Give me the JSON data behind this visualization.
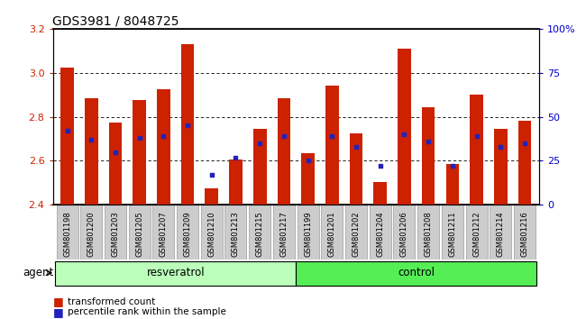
{
  "title": "GDS3981 / 8048725",
  "samples": [
    "GSM801198",
    "GSM801200",
    "GSM801203",
    "GSM801205",
    "GSM801207",
    "GSM801209",
    "GSM801210",
    "GSM801213",
    "GSM801215",
    "GSM801217",
    "GSM801199",
    "GSM801201",
    "GSM801202",
    "GSM801204",
    "GSM801206",
    "GSM801208",
    "GSM801211",
    "GSM801212",
    "GSM801214",
    "GSM801216"
  ],
  "transformed_count": [
    3.025,
    2.885,
    2.775,
    2.875,
    2.925,
    3.13,
    2.475,
    2.605,
    2.745,
    2.885,
    2.635,
    2.94,
    2.725,
    2.505,
    3.11,
    2.845,
    2.585,
    2.9,
    2.745,
    2.78
  ],
  "percentile_rank": [
    42,
    37,
    30,
    38,
    39,
    45,
    17,
    27,
    35,
    39,
    25,
    39,
    33,
    22,
    40,
    36,
    22,
    39,
    33,
    35
  ],
  "resveratrol_count": 10,
  "control_count": 10,
  "agent_label": "agent",
  "group1_label": "resveratrol",
  "group2_label": "control",
  "ylim": [
    2.4,
    3.2
  ],
  "yticks": [
    2.4,
    2.6,
    2.8,
    3.0,
    3.2
  ],
  "right_yticks": [
    0,
    25,
    50,
    75,
    100
  ],
  "right_ytick_labels": [
    "0",
    "25",
    "50",
    "75",
    "100%"
  ],
  "bar_color": "#cc2200",
  "dot_color": "#2222bb",
  "bg_color_resveratrol": "#bbffbb",
  "bg_color_control": "#55ee55",
  "title_fontsize": 10,
  "bar_bottom": 2.4,
  "label_color_left": "#cc2200",
  "label_color_right": "#0000cc"
}
